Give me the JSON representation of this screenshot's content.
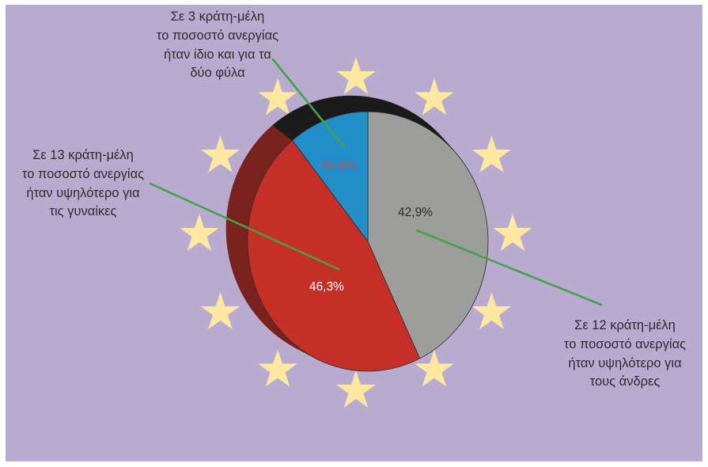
{
  "chart_data": {
    "type": "pie",
    "legend": "none",
    "slices": [
      {
        "value": 42.9,
        "label": "42,9%",
        "color": "#9d9d9b",
        "side_color": "#1b1b1b",
        "label_color": "#2b2b2b",
        "annotation": [
          "Σε 12 κράτη-μέλη",
          "το ποσοστό ανεργίας",
          "ήταν υψηλότερο για",
          "τους άνδρες"
        ]
      },
      {
        "value": 46.3,
        "label": "46,3%",
        "color": "#c62f28",
        "side_color": "#7a231e",
        "label_color": "#ffffff",
        "annotation": [
          "Σε 13 κράτη-μέλη",
          "το ποσοστό ανεργίας",
          "ήταν υψηλότερο για",
          "τις γυναίκες"
        ]
      },
      {
        "value": 10.8,
        "label": "10,8%",
        "color": "#1f8ec9",
        "side_color": "#1b1b1b",
        "label_color": "#cf4b3f",
        "annotation": [
          "Σε 3 κράτη-μέλη",
          "το ποσοστό ανεργίας",
          "ήταν ίδιο και για τα",
          "δύο φύλα"
        ]
      }
    ]
  },
  "stars": {
    "count": 12,
    "color": "#fde8a2"
  },
  "colors": {
    "page_border": "#ffffff",
    "background": "#b8abcf",
    "leader_lines": "#43a348",
    "outline": "#2b2b2b",
    "annotation_text": "#2b2b2b"
  }
}
